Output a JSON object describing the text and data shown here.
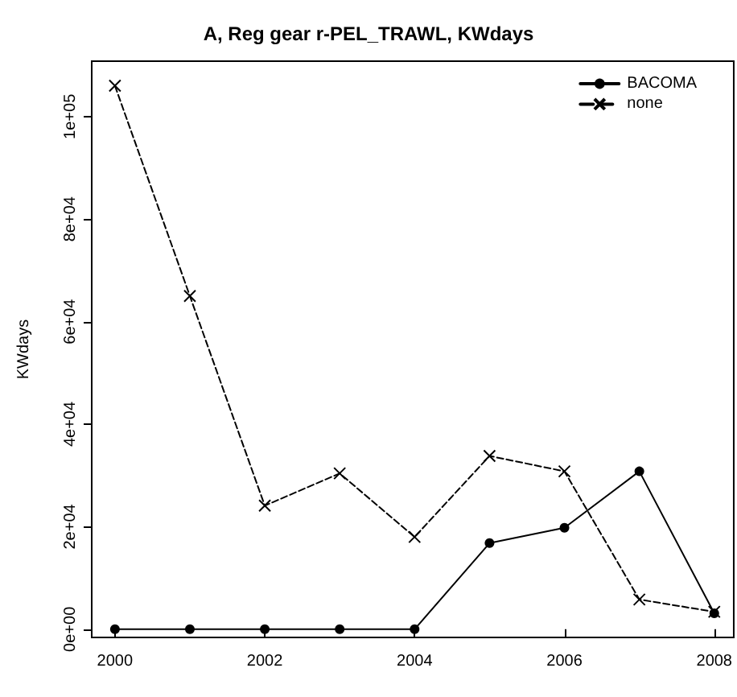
{
  "chart_data": {
    "type": "line",
    "title": "A, Reg gear r-PEL_TRAWL, KWdays",
    "ylabel": "KWdays",
    "x": [
      2000,
      2001,
      2002,
      2003,
      2004,
      2005,
      2006,
      2007,
      2008
    ],
    "series": [
      {
        "name": "BACOMA",
        "color": "#000000",
        "marker": "circle",
        "line_style": "solid",
        "values": [
          0,
          0,
          0,
          0,
          0,
          16800,
          19800,
          30800,
          3100
        ]
      },
      {
        "name": "none",
        "color": "#000000",
        "marker": "cross",
        "line_style": "dashed",
        "values": [
          106000,
          65000,
          24100,
          30400,
          18000,
          33800,
          30800,
          5800,
          3400
        ]
      }
    ],
    "xlim": [
      1999.69,
      2008.26
    ],
    "xticks": [
      2000,
      2002,
      2004,
      2006,
      2008
    ],
    "ylim": [
      -1600,
      110800
    ],
    "yticks": [
      {
        "value": 0,
        "label": "0e+00"
      },
      {
        "value": 20000,
        "label": "2e+04"
      },
      {
        "value": 40000,
        "label": "4e+04"
      },
      {
        "value": 60000,
        "label": "6e+04"
      },
      {
        "value": 80000,
        "label": "8e+04"
      },
      {
        "value": 100000,
        "label": "1e+05"
      }
    ],
    "grid": false,
    "legend": "top right"
  }
}
